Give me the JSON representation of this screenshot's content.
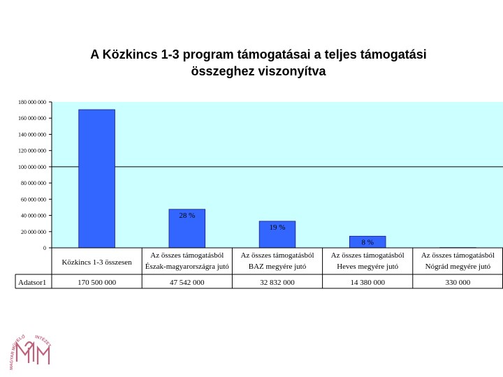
{
  "title_line1": "A Közkincs 1-3 program támogatásai a teljes támogatási",
  "title_line2": "összeghez viszonyítva",
  "logo_text": "MAGYAR MŰVELŐDÉSI INTÉZET",
  "colors": {
    "plot_bg": "#ccffff",
    "bar": "#3366ff",
    "bar_stroke": "#1a1a80",
    "grid": "#000000",
    "logo": "#c0607a"
  },
  "chart_data": {
    "type": "bar",
    "title": "A Közkincs 1-3 program támogatásai a teljes támogatási összeghez viszonyítva",
    "categories": [
      [
        "Közkincs 1-3 összesen"
      ],
      [
        "Az összes támogatásból",
        "Észak-magyarországra jutó"
      ],
      [
        "Az összes támogatásból",
        "BAZ megyére jutó"
      ],
      [
        "Az összes támogatásból",
        "Heves megyére jutó"
      ],
      [
        "Az összes támogatásból",
        "Nógrád megyére jutó"
      ]
    ],
    "series": [
      {
        "name": "Adatsor1",
        "values": [
          170500000,
          47542000,
          32832000,
          14380000,
          330000
        ]
      }
    ],
    "value_labels": [
      "170 500 000",
      "47 542 000",
      "32 832 000",
      "14 380 000",
      "330 000"
    ],
    "data_labels": [
      "",
      "28 %",
      "19 %",
      "8 %",
      ""
    ],
    "ylim": [
      0,
      180000000
    ],
    "yticks": [
      {
        "v": 0,
        "label": "0"
      },
      {
        "v": 20000000,
        "label": "20 000 000"
      },
      {
        "v": 40000000,
        "label": "40 000 000"
      },
      {
        "v": 60000000,
        "label": "60 000 000"
      },
      {
        "v": 80000000,
        "label": "80 000 000"
      },
      {
        "v": 100000000,
        "label": "100 000 000"
      },
      {
        "v": 120000000,
        "label": "120 000 000"
      },
      {
        "v": 140000000,
        "label": "140 000 000"
      },
      {
        "v": 160000000,
        "label": "160 000 000"
      },
      {
        "v": 180000000,
        "label": "180 000 000"
      }
    ],
    "major_gridlines": [
      100000000,
      0
    ],
    "data_table": true,
    "legend": "none"
  }
}
